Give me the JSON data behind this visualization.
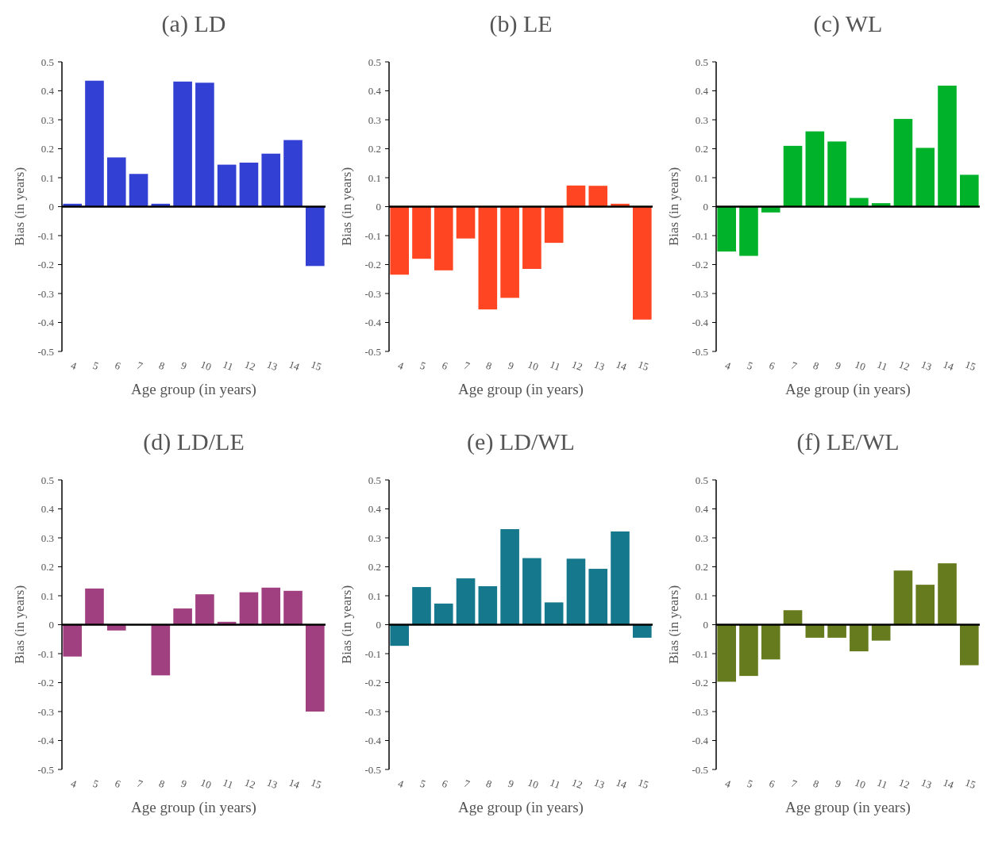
{
  "chart_data": [
    {
      "type": "bar",
      "title": "(a) LD",
      "xlabel": "Age group (in years)",
      "ylabel": "Bias (in years)",
      "categories": [
        "4",
        "5",
        "6",
        "7",
        "8",
        "9",
        "10",
        "11",
        "12",
        "13",
        "14",
        "15"
      ],
      "values": [
        0.01,
        0.435,
        0.17,
        0.113,
        0.01,
        0.432,
        0.428,
        0.145,
        0.152,
        0.183,
        0.23,
        -0.205
      ],
      "color": "#3340d4",
      "ylim": [
        -0.5,
        0.5
      ],
      "yticks": [
        -0.5,
        -0.4,
        -0.3,
        -0.2,
        -0.1,
        0,
        0.1,
        0.2,
        0.3,
        0.4,
        0.5
      ]
    },
    {
      "type": "bar",
      "title": "(b) LE",
      "xlabel": "Age group (in years)",
      "ylabel": "Bias (in years)",
      "categories": [
        "4",
        "5",
        "6",
        "7",
        "8",
        "9",
        "10",
        "11",
        "12",
        "13",
        "14",
        "15"
      ],
      "values": [
        -0.235,
        -0.18,
        -0.22,
        -0.11,
        -0.355,
        -0.315,
        -0.215,
        -0.125,
        0.073,
        0.072,
        0.01,
        -0.39
      ],
      "color": "#ff4521",
      "ylim": [
        -0.5,
        0.5
      ],
      "yticks": [
        -0.5,
        -0.4,
        -0.3,
        -0.2,
        -0.1,
        0,
        0.1,
        0.2,
        0.3,
        0.4,
        0.5
      ]
    },
    {
      "type": "bar",
      "title": "(c) WL",
      "xlabel": "Age group (in years)",
      "ylabel": "Bias (in years)",
      "categories": [
        "4",
        "5",
        "6",
        "7",
        "8",
        "9",
        "10",
        "11",
        "12",
        "13",
        "14",
        "15"
      ],
      "values": [
        -0.155,
        -0.17,
        -0.02,
        0.21,
        0.26,
        0.225,
        0.03,
        0.012,
        0.303,
        0.203,
        0.418,
        0.11
      ],
      "color": "#00b22a",
      "ylim": [
        -0.5,
        0.5
      ],
      "yticks": [
        -0.5,
        -0.4,
        -0.3,
        -0.2,
        -0.1,
        0,
        0.1,
        0.2,
        0.3,
        0.4,
        0.5
      ]
    },
    {
      "type": "bar",
      "title": "(d) LD/LE",
      "xlabel": "Age group (in years)",
      "ylabel": "Bias (in years)",
      "categories": [
        "4",
        "5",
        "6",
        "7",
        "8",
        "9",
        "10",
        "11",
        "12",
        "13",
        "14",
        "15"
      ],
      "values": [
        -0.11,
        0.125,
        -0.02,
        0,
        -0.175,
        0.056,
        0.105,
        0.01,
        0.112,
        0.128,
        0.117,
        -0.3
      ],
      "color": "#a04080",
      "ylim": [
        -0.5,
        0.5
      ],
      "yticks": [
        -0.5,
        -0.4,
        -0.3,
        -0.2,
        -0.1,
        0,
        0.1,
        0.2,
        0.3,
        0.4,
        0.5
      ]
    },
    {
      "type": "bar",
      "title": "(e) LD/WL",
      "xlabel": "Age group (in years)",
      "ylabel": "Bias (in years)",
      "categories": [
        "4",
        "5",
        "6",
        "7",
        "8",
        "9",
        "10",
        "11",
        "12",
        "13",
        "14",
        "15"
      ],
      "values": [
        -0.073,
        0.13,
        0.073,
        0.16,
        0.133,
        0.33,
        0.23,
        0.077,
        0.228,
        0.193,
        0.322,
        -0.045
      ],
      "color": "#16788c",
      "ylim": [
        -0.5,
        0.5
      ],
      "yticks": [
        -0.5,
        -0.4,
        -0.3,
        -0.2,
        -0.1,
        0,
        0.1,
        0.2,
        0.3,
        0.4,
        0.5
      ]
    },
    {
      "type": "bar",
      "title": "(f) LE/WL",
      "xlabel": "Age group (in years)",
      "ylabel": "Bias (in years)",
      "categories": [
        "4",
        "5",
        "6",
        "7",
        "8",
        "9",
        "10",
        "11",
        "12",
        "13",
        "14",
        "15"
      ],
      "values": [
        -0.197,
        -0.177,
        -0.12,
        0.05,
        -0.045,
        -0.045,
        -0.092,
        -0.055,
        0.187,
        0.138,
        0.212,
        -0.14
      ],
      "color": "#667a1e",
      "ylim": [
        -0.5,
        0.5
      ],
      "yticks": [
        -0.5,
        -0.4,
        -0.3,
        -0.2,
        -0.1,
        0,
        0.1,
        0.2,
        0.3,
        0.4,
        0.5
      ]
    }
  ]
}
